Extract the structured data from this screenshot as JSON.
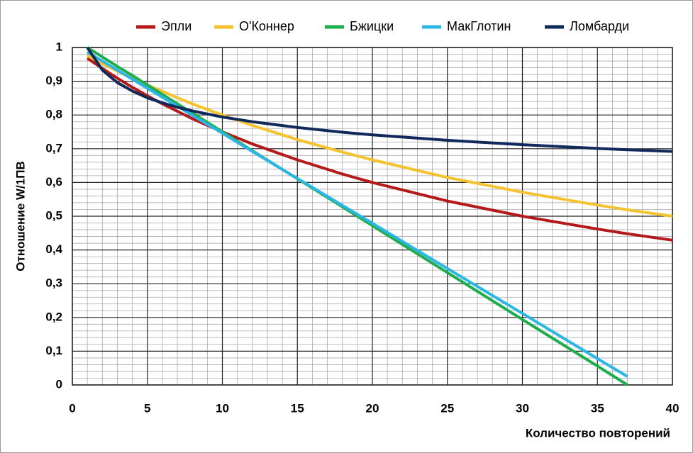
{
  "chart_data": {
    "type": "line",
    "x": [
      1,
      2,
      3,
      4,
      5,
      6,
      7,
      8,
      10,
      12,
      15,
      18,
      20,
      25,
      30,
      35,
      37,
      40
    ],
    "series": [
      {
        "name": "Эпли",
        "color": "#b51a1a",
        "values": [
          0.968,
          0.938,
          0.909,
          0.882,
          0.857,
          0.833,
          0.811,
          0.789,
          0.75,
          0.714,
          0.667,
          0.625,
          0.6,
          0.545,
          0.5,
          0.462,
          0.448,
          0.429
        ]
      },
      {
        "name": "О'Коннер",
        "color": "#f5c330",
        "values": [
          0.976,
          0.952,
          0.93,
          0.909,
          0.889,
          0.87,
          0.851,
          0.833,
          0.8,
          0.769,
          0.727,
          0.69,
          0.667,
          0.615,
          0.571,
          0.533,
          0.519,
          0.5
        ]
      },
      {
        "name": "Бжицки",
        "color": "#1fae4e",
        "values": [
          1,
          0.972,
          0.944,
          0.917,
          0.889,
          0.861,
          0.833,
          0.806,
          0.75,
          0.694,
          0.611,
          0.528,
          0.472,
          0.333,
          0.194,
          0.056,
          0,
          null
        ]
      },
      {
        "name": "МакГлотин",
        "color": "#2cb6e6",
        "values": [
          0.986,
          0.96,
          0.933,
          0.906,
          0.879,
          0.853,
          0.826,
          0.799,
          0.746,
          0.692,
          0.612,
          0.532,
          0.479,
          0.345,
          0.212,
          0.078,
          0.025,
          null
        ]
      },
      {
        "name": "Ломбарди",
        "color": "#112a5c",
        "values": [
          1,
          0.933,
          0.896,
          0.871,
          0.851,
          0.836,
          0.823,
          0.812,
          0.794,
          0.78,
          0.763,
          0.749,
          0.741,
          0.725,
          0.712,
          0.701,
          0.697,
          0.692
        ]
      }
    ],
    "xlabel": "Количество повторений",
    "ylabel": "Отношение W/1ПВ",
    "xlim": [
      0,
      40
    ],
    "xticks": [
      0,
      5,
      10,
      15,
      20,
      25,
      30,
      35,
      40
    ],
    "ylim": [
      0,
      1
    ],
    "yticks": [
      0,
      {
        "value": 0.1,
        "label": "0,1"
      },
      {
        "value": 0.2,
        "label": "0,2"
      },
      {
        "value": 0.3,
        "label": "0,3"
      },
      {
        "value": 0.4,
        "label": "0,4"
      },
      {
        "value": 0.5,
        "label": "0,5"
      },
      {
        "value": 0.6,
        "label": "0,6"
      },
      {
        "value": 0.7,
        "label": "0,7"
      },
      {
        "value": 0.8,
        "label": "0,8"
      },
      {
        "value": 0.9,
        "label": "0,9"
      },
      1
    ],
    "grid": true,
    "minor_grid": true,
    "legend": "top"
  }
}
